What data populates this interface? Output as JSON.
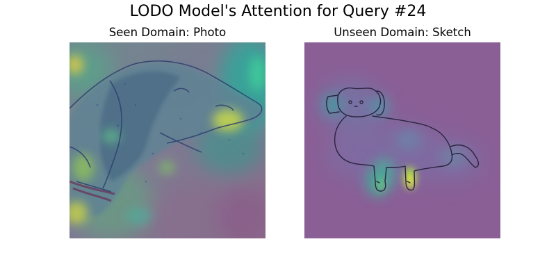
{
  "figure": {
    "title": "LODO Model's Attention for Query #24"
  },
  "panels": [
    {
      "title": "Seen Domain: Photo",
      "subject": "dog photo with attention heatmap overlay",
      "colormap": "viridis"
    },
    {
      "title": "Unseen Domain: Sketch",
      "subject": "dog sketch with attention heatmap overlay",
      "colormap": "viridis"
    }
  ],
  "colors": {
    "low_attention": "#8a5f96",
    "mid_attention": "#3aa6a0",
    "high_attention": "#dfe84a"
  }
}
